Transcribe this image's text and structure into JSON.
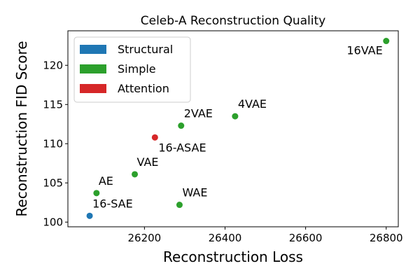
{
  "chart_data": {
    "type": "scatter",
    "title": "Celeb-A Reconstruction Quality",
    "xlabel": "Reconstruction Loss",
    "ylabel": "Reconstruction FID Score",
    "xlim": [
      26010,
      26830
    ],
    "ylim": [
      99.4,
      124.4
    ],
    "xticks": [
      26200,
      26400,
      26600,
      26800
    ],
    "yticks": [
      100,
      105,
      110,
      115,
      120
    ],
    "legend_position": "top-left",
    "categories": [
      {
        "name": "Structural",
        "color": "#1f77b4"
      },
      {
        "name": "Simple",
        "color": "#2ca02c"
      },
      {
        "name": "Attention",
        "color": "#d62728"
      }
    ],
    "points": [
      {
        "label": "16-SAE",
        "x": 26064,
        "y": 100.8,
        "category": "Structural"
      },
      {
        "label": "AE",
        "x": 26081,
        "y": 103.7,
        "category": "Simple"
      },
      {
        "label": "VAE",
        "x": 26176,
        "y": 106.1,
        "category": "Simple"
      },
      {
        "label": "WAE",
        "x": 26287,
        "y": 102.2,
        "category": "Simple"
      },
      {
        "label": "2VAE",
        "x": 26291,
        "y": 112.3,
        "category": "Simple"
      },
      {
        "label": "4VAE",
        "x": 26425,
        "y": 113.5,
        "category": "Simple"
      },
      {
        "label": "16VAE",
        "x": 26800,
        "y": 123.1,
        "category": "Simple"
      },
      {
        "label": "16-ASAE",
        "x": 26226,
        "y": 110.8,
        "category": "Attention"
      }
    ]
  }
}
